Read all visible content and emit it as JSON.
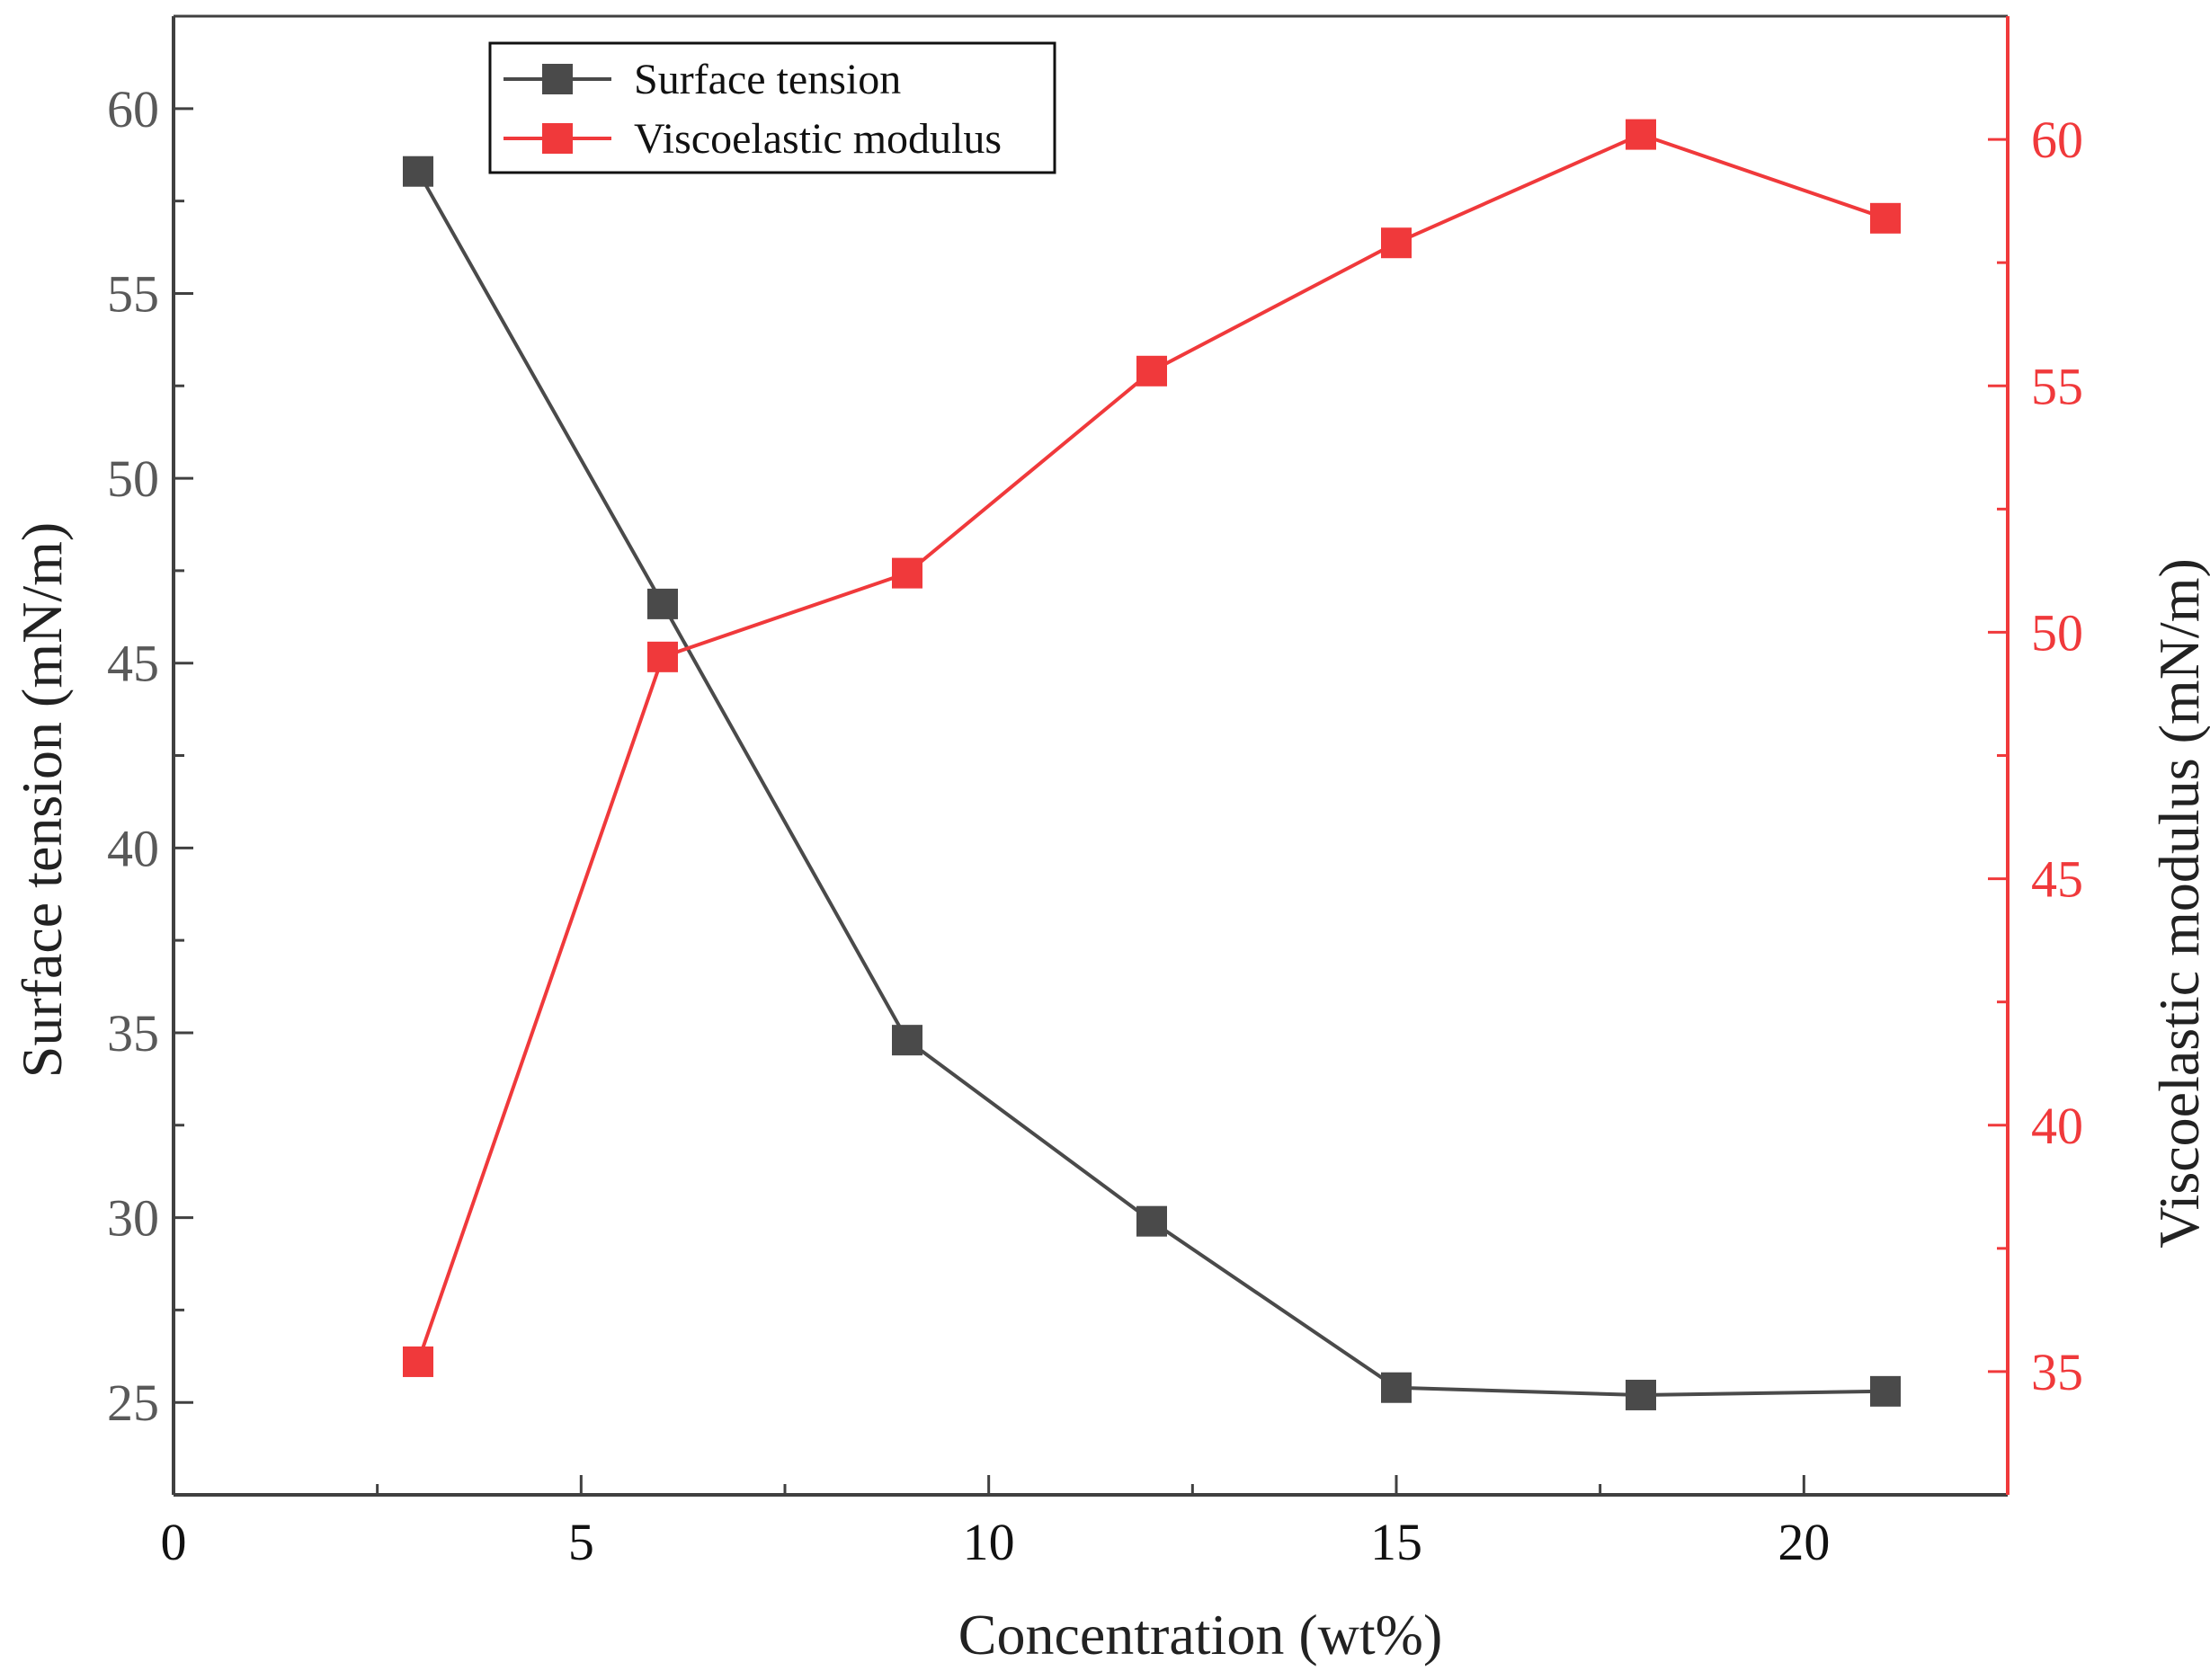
{
  "chart_data": {
    "type": "line",
    "x": [
      3,
      6,
      9,
      12,
      15,
      18,
      21
    ],
    "xlabel": "Concentration  (wt%)",
    "xlim": [
      0,
      22.5
    ],
    "xticks": [
      0,
      5,
      10,
      15,
      20
    ],
    "xminor_ticks": [
      2.5,
      7.5,
      12.5,
      17.5
    ],
    "y_left": {
      "label": "Surface tension (mN/m)",
      "lim": [
        22.5,
        62.5
      ],
      "ticks": [
        25,
        30,
        35,
        40,
        45,
        50,
        55,
        60
      ],
      "minor_ticks": [
        27.5,
        32.5,
        37.5,
        42.5,
        47.5,
        52.5,
        57.5
      ]
    },
    "y_right": {
      "label": "Viscoelastic modulus (mN/m)",
      "lim": [
        32.5,
        62.5
      ],
      "ticks": [
        35,
        40,
        45,
        50,
        55,
        60
      ],
      "minor_ticks": [
        37.5,
        42.5,
        47.5,
        52.5,
        57.5
      ]
    },
    "series": [
      {
        "name": "Surface tension",
        "axis": "left",
        "color": "#4a4a4a",
        "values": [
          58.3,
          46.6,
          34.8,
          29.9,
          25.4,
          25.2,
          25.3
        ]
      },
      {
        "name": "Viscoelastic modulus",
        "axis": "right",
        "color": "#f0393b",
        "values": [
          35.2,
          49.5,
          51.2,
          55.3,
          57.9,
          60.1,
          58.4
        ]
      }
    ],
    "legend": {
      "position": "top-left"
    },
    "colors": {
      "axis": "#404040",
      "right_axis": "#f0393b",
      "tick_text": "#595959"
    }
  }
}
